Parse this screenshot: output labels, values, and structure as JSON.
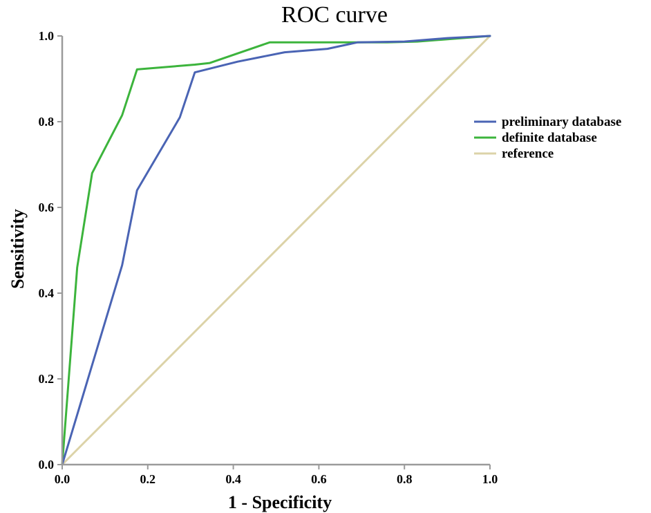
{
  "chart_data": {
    "type": "line",
    "title": "ROC curve",
    "xlabel": "1 - Specificity",
    "ylabel": "Sensitivity",
    "xlim": [
      0,
      1
    ],
    "ylim": [
      0,
      1
    ],
    "x_ticks": [
      "0.0",
      "0.2",
      "0.4",
      "0.6",
      "0.8",
      "1.0"
    ],
    "y_ticks": [
      "0.0",
      "0.2",
      "0.4",
      "0.6",
      "0.8",
      "1.0"
    ],
    "grid": false,
    "legend_position": "right",
    "series": [
      {
        "name": "preliminary database",
        "color": "#4a64b4",
        "x": [
          0.0,
          0.14,
          0.175,
          0.275,
          0.31,
          0.41,
          0.52,
          0.62,
          0.69,
          0.8,
          0.9,
          1.0
        ],
        "y": [
          0.0,
          0.465,
          0.64,
          0.81,
          0.915,
          0.94,
          0.962,
          0.97,
          0.985,
          0.987,
          0.995,
          1.0
        ]
      },
      {
        "name": "definite database",
        "color": "#3cb43c",
        "x": [
          0.0,
          0.035,
          0.07,
          0.14,
          0.175,
          0.31,
          0.345,
          0.485,
          0.69,
          0.76,
          0.83,
          1.0
        ],
        "y": [
          0.0,
          0.46,
          0.68,
          0.815,
          0.922,
          0.933,
          0.937,
          0.985,
          0.985,
          0.985,
          0.987,
          1.0
        ]
      },
      {
        "name": "reference",
        "color": "#dcd3a8",
        "x": [
          0.0,
          1.0
        ],
        "y": [
          0.0,
          1.0
        ]
      }
    ]
  }
}
